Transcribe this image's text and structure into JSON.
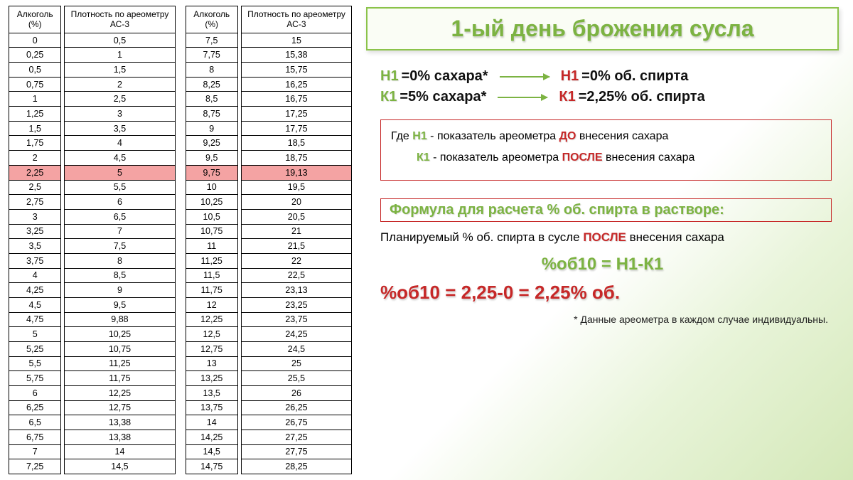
{
  "table": {
    "headers": {
      "alc": "Алкоголь\n(%)",
      "density": "Плотность\nпо\nареометру\nАС-3"
    },
    "highlight_index": 9,
    "left": [
      [
        "0",
        "0,5"
      ],
      [
        "0,25",
        "1"
      ],
      [
        "0,5",
        "1,5"
      ],
      [
        "0,75",
        "2"
      ],
      [
        "1",
        "2,5"
      ],
      [
        "1,25",
        "3"
      ],
      [
        "1,5",
        "3,5"
      ],
      [
        "1,75",
        "4"
      ],
      [
        "2",
        "4,5"
      ],
      [
        "2,25",
        "5"
      ],
      [
        "2,5",
        "5,5"
      ],
      [
        "2,75",
        "6"
      ],
      [
        "3",
        "6,5"
      ],
      [
        "3,25",
        "7"
      ],
      [
        "3,5",
        "7,5"
      ],
      [
        "3,75",
        "8"
      ],
      [
        "4",
        "8,5"
      ],
      [
        "4,25",
        "9"
      ],
      [
        "4,5",
        "9,5"
      ],
      [
        "4,75",
        "9,88"
      ],
      [
        "5",
        "10,25"
      ],
      [
        "5,25",
        "10,75"
      ],
      [
        "5,5",
        "11,25"
      ],
      [
        "5,75",
        "11,75"
      ],
      [
        "6",
        "12,25"
      ],
      [
        "6,25",
        "12,75"
      ],
      [
        "6,5",
        "13,38"
      ],
      [
        "6,75",
        "13,38"
      ],
      [
        "7",
        "14"
      ],
      [
        "7,25",
        "14,5"
      ]
    ],
    "right": [
      [
        "7,5",
        "15"
      ],
      [
        "7,75",
        "15,38"
      ],
      [
        "8",
        "15,75"
      ],
      [
        "8,25",
        "16,25"
      ],
      [
        "8,5",
        "16,75"
      ],
      [
        "8,75",
        "17,25"
      ],
      [
        "9",
        "17,75"
      ],
      [
        "9,25",
        "18,5"
      ],
      [
        "9,5",
        "18,75"
      ],
      [
        "9,75",
        "19,13"
      ],
      [
        "10",
        "19,5"
      ],
      [
        "10,25",
        "20"
      ],
      [
        "10,5",
        "20,5"
      ],
      [
        "10,75",
        "21"
      ],
      [
        "11",
        "21,5"
      ],
      [
        "11,25",
        "22"
      ],
      [
        "11,5",
        "22,5"
      ],
      [
        "11,75",
        "23,13"
      ],
      [
        "12",
        "23,25"
      ],
      [
        "12,25",
        "23,75"
      ],
      [
        "12,5",
        "24,25"
      ],
      [
        "12,75",
        "24,5"
      ],
      [
        "13",
        "25"
      ],
      [
        "13,25",
        "25,5"
      ],
      [
        "13,5",
        "26"
      ],
      [
        "13,75",
        "26,25"
      ],
      [
        "14",
        "26,75"
      ],
      [
        "14,25",
        "27,25"
      ],
      [
        "14,5",
        "27,75"
      ],
      [
        "14,75",
        "28,25"
      ]
    ]
  },
  "title": "1-ый день брожения сусла",
  "eq": {
    "h1l_lbl": "Н1",
    "h1l_rest": "=0% сахара*",
    "h1r_lbl": "Н1",
    "h1r_rest": "=0% об. спирта",
    "k1l_lbl": "К1",
    "k1l_rest": "=5% сахара*",
    "k1r_lbl": "К1",
    "k1r_rest": "=2,25% об. спирта"
  },
  "legend": {
    "where": "Где ",
    "h1": "Н1",
    "h1_txt1": " - показатель ареометра ",
    "do": "ДО",
    "h1_txt2": " внесения сахара",
    "k1": "К1",
    "k1_txt1": " - показатель ареометра ",
    "posle": "ПОСЛЕ",
    "k1_txt2": " внесения сахара"
  },
  "formula_title": "Формула для расчета % об. спирта в растворе:",
  "plan": {
    "t1": "Планируемый % об. спирта в сусле ",
    "posle": "ПОСЛЕ",
    "t2": " внесения сахара"
  },
  "formula1": "%об10 = Н1-К1",
  "formula2": "%об10 = 2,25-0 = 2,25% об.",
  "footnote": "* Данные ареометра в каждом случае индивидуальны."
}
